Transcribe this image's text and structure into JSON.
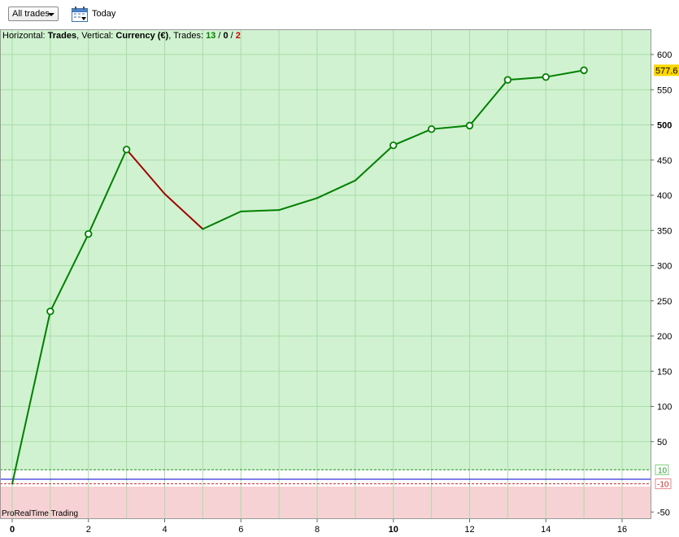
{
  "toolbar": {
    "filter_value": "All trades",
    "today_label": "Today"
  },
  "header": {
    "horizontal_label": "Horizontal: ",
    "horizontal_value": "Trades",
    "vertical_label": ", Vertical: ",
    "vertical_value": "Currency (€)",
    "trades_label": ", Trades: ",
    "winning": "13",
    "sep1": " / ",
    "neutral": "0",
    "sep2": " / ",
    "losing": "2"
  },
  "watermark": "ProRealTime Trading",
  "colors": {
    "gain_zone": "#d0f2d0",
    "loss_zone": "#f7d2d4",
    "up_line": "#008000",
    "down_line": "#a00000",
    "marker_fill": "#ffffff",
    "last_value_badge": "#ffd700"
  },
  "chart_data": {
    "type": "line",
    "x_label": "Trades",
    "y_label": "Currency (€)",
    "x": [
      0,
      1,
      2,
      3,
      4,
      5,
      6,
      7,
      8,
      9,
      10,
      11,
      12,
      13,
      14,
      15
    ],
    "values": [
      -10,
      235,
      345,
      465,
      402,
      352,
      377,
      379,
      396,
      421,
      471,
      494,
      499,
      564,
      568,
      577.6
    ],
    "markers": [
      false,
      true,
      true,
      true,
      false,
      false,
      false,
      false,
      false,
      false,
      true,
      true,
      true,
      true,
      true,
      true
    ],
    "xlim": [
      0,
      16.5
    ],
    "ylim": [
      -60,
      625
    ],
    "x_ticks": [
      0,
      2,
      4,
      6,
      8,
      10,
      12,
      14,
      16
    ],
    "x_ticks_bold": [
      0,
      10
    ],
    "y_ticks": [
      -50,
      50,
      100,
      150,
      200,
      250,
      300,
      350,
      400,
      450,
      500,
      550,
      600
    ],
    "y_ticks_bold": [
      500
    ],
    "threshold_upper": 10,
    "threshold_lower": -10,
    "threshold_labels": [
      "10",
      "-10"
    ],
    "last_value_label": "577.6",
    "grid": true
  }
}
